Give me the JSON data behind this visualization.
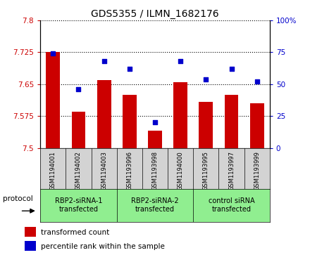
{
  "title": "GDS5355 / ILMN_1682176",
  "samples": [
    "GSM1194001",
    "GSM1194002",
    "GSM1194003",
    "GSM1193996",
    "GSM1193998",
    "GSM1194000",
    "GSM1193995",
    "GSM1193997",
    "GSM1193999"
  ],
  "bar_values": [
    7.725,
    7.585,
    7.66,
    7.625,
    7.54,
    7.655,
    7.608,
    7.625,
    7.605
  ],
  "scatter_values": [
    74,
    46,
    68,
    62,
    20,
    68,
    54,
    62,
    52
  ],
  "ylim_left": [
    7.5,
    7.8
  ],
  "ylim_right": [
    0,
    100
  ],
  "yticks_left": [
    7.5,
    7.575,
    7.65,
    7.725,
    7.8
  ],
  "ytick_labels_left": [
    "7.5",
    "7.575",
    "7.65",
    "7.725",
    "7.8"
  ],
  "yticks_right": [
    0,
    25,
    50,
    75,
    100
  ],
  "ytick_labels_right": [
    "0",
    "25",
    "50",
    "75",
    "100%"
  ],
  "bar_color": "#cc0000",
  "scatter_color": "#0000cc",
  "bar_bottom": 7.5,
  "groups": [
    {
      "label": "RBP2-siRNA-1\ntransfected",
      "start": 0,
      "end": 3
    },
    {
      "label": "RBP2-siRNA-2\ntransfected",
      "start": 3,
      "end": 6
    },
    {
      "label": "control siRNA\ntransfected",
      "start": 6,
      "end": 9
    }
  ],
  "group_color": "#90ee90",
  "protocol_label": "protocol",
  "legend_bar_label": "transformed count",
  "legend_scatter_label": "percentile rank within the sample",
  "background_color": "#ffffff",
  "plot_bg_color": "#ffffff",
  "sample_box_color": "#d3d3d3",
  "title_fontsize": 10
}
